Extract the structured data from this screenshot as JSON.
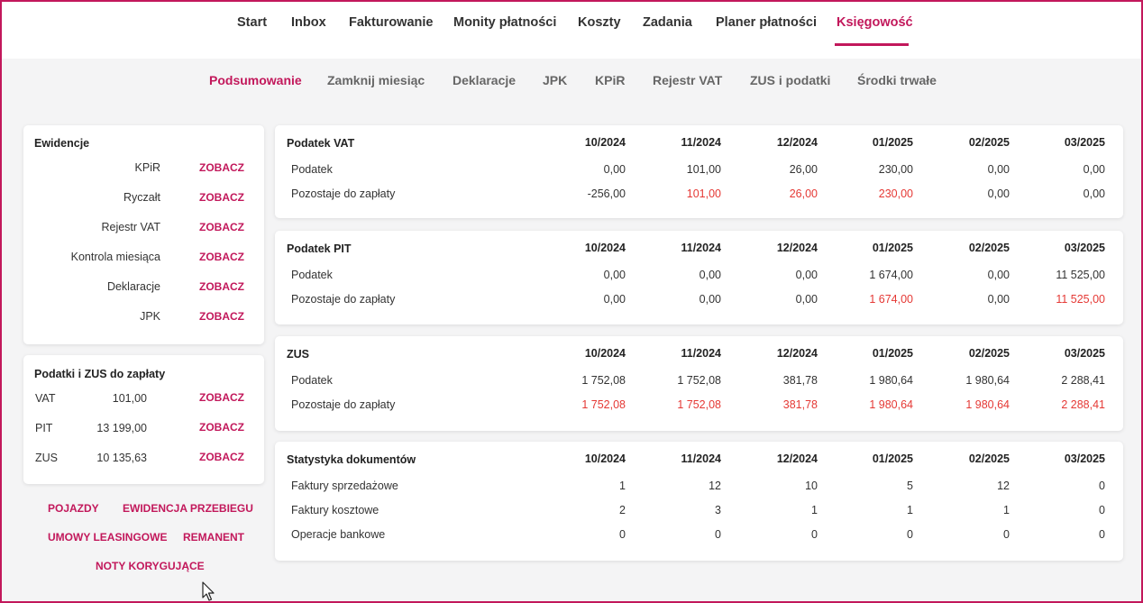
{
  "colors": {
    "accent": "#c2185b",
    "due": "#e53935"
  },
  "top_nav": [
    "Start",
    "Inbox",
    "Fakturowanie",
    "Monity płatności",
    "Koszty",
    "Zadania",
    "Planer płatności",
    "Księgowość"
  ],
  "top_nav_active": "Księgowość",
  "sub_nav": [
    "Podsumowanie",
    "Zamknij miesiąc",
    "Deklaracje",
    "JPK",
    "KPiR",
    "Rejestr VAT",
    "ZUS i podatki",
    "Środki trwałe"
  ],
  "sub_nav_active": "Podsumowanie",
  "ewidencje": {
    "title": "Ewidencje",
    "link_label": "ZOBACZ",
    "items": [
      "KPiR",
      "Ryczałt",
      "Rejestr VAT",
      "Kontrola miesiąca",
      "Deklaracje",
      "JPK"
    ]
  },
  "podatki": {
    "title": "Podatki i ZUS do zapłaty",
    "link_label": "ZOBACZ",
    "items": [
      {
        "label": "VAT",
        "amount": "101,00"
      },
      {
        "label": "PIT",
        "amount": "13 199,00"
      },
      {
        "label": "ZUS",
        "amount": "10 135,63"
      }
    ]
  },
  "bottom_links": [
    "POJAZDY",
    "EWIDENCJA PRZEBIEGU",
    "UMOWY LEASINGOWE",
    "REMANENT",
    "NOTY KORYGUJĄCE"
  ],
  "periods": [
    "10/2024",
    "11/2024",
    "12/2024",
    "01/2025",
    "02/2025",
    "03/2025"
  ],
  "tables": [
    {
      "title": "Podatek VAT",
      "rows": [
        {
          "label": "Podatek",
          "values": [
            "0,00",
            "101,00",
            "26,00",
            "230,00",
            "0,00",
            "0,00"
          ],
          "due": [
            false,
            false,
            false,
            false,
            false,
            false
          ]
        },
        {
          "label": "Pozostaje do zapłaty",
          "values": [
            "-256,00",
            "101,00",
            "26,00",
            "230,00",
            "0,00",
            "0,00"
          ],
          "due": [
            false,
            true,
            true,
            true,
            false,
            false
          ]
        }
      ]
    },
    {
      "title": "Podatek PIT",
      "rows": [
        {
          "label": "Podatek",
          "values": [
            "0,00",
            "0,00",
            "0,00",
            "1 674,00",
            "0,00",
            "11 525,00"
          ],
          "due": [
            false,
            false,
            false,
            false,
            false,
            false
          ]
        },
        {
          "label": "Pozostaje do zapłaty",
          "values": [
            "0,00",
            "0,00",
            "0,00",
            "1 674,00",
            "0,00",
            "11 525,00"
          ],
          "due": [
            false,
            false,
            false,
            true,
            false,
            true
          ]
        }
      ]
    },
    {
      "title": "ZUS",
      "rows": [
        {
          "label": "Podatek",
          "values": [
            "1 752,08",
            "1 752,08",
            "381,78",
            "1 980,64",
            "1 980,64",
            "2 288,41"
          ],
          "due": [
            false,
            false,
            false,
            false,
            false,
            false
          ]
        },
        {
          "label": "Pozostaje do zapłaty",
          "values": [
            "1 752,08",
            "1 752,08",
            "381,78",
            "1 980,64",
            "1 980,64",
            "2 288,41"
          ],
          "due": [
            true,
            true,
            true,
            true,
            true,
            true
          ]
        }
      ]
    },
    {
      "title": "Statystyka dokumentów",
      "rows": [
        {
          "label": "Faktury sprzedażowe",
          "values": [
            "1",
            "12",
            "10",
            "5",
            "12",
            "0"
          ],
          "due": [
            false,
            false,
            false,
            false,
            false,
            false
          ]
        },
        {
          "label": "Faktury kosztowe",
          "values": [
            "2",
            "3",
            "1",
            "1",
            "1",
            "0"
          ],
          "due": [
            false,
            false,
            false,
            false,
            false,
            false
          ]
        },
        {
          "label": "Operacje bankowe",
          "values": [
            "0",
            "0",
            "0",
            "0",
            "0",
            "0"
          ],
          "due": [
            false,
            false,
            false,
            false,
            false,
            false
          ]
        }
      ]
    }
  ]
}
